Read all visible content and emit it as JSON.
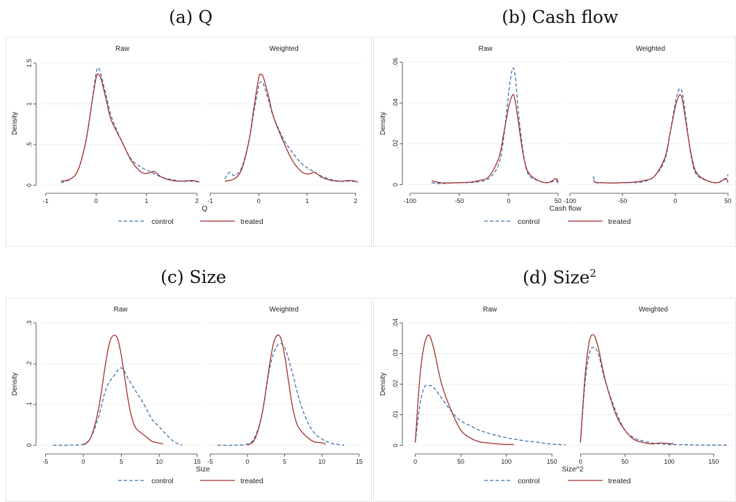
{
  "panels": [
    {
      "key": "a",
      "title": "(a) Q",
      "subplots": [
        "Raw",
        "Weighted"
      ],
      "xlabel": "Q",
      "ylabel": "Density",
      "yticks": [
        {
          "v": 0,
          "label": "0"
        },
        {
          "v": 0.5,
          "label": ".5"
        },
        {
          "v": 1,
          "label": "1"
        },
        {
          "v": 1.5,
          "label": "1.5"
        }
      ],
      "ylim": [
        -0.03,
        1.55
      ],
      "xticks_left": [
        -1,
        0,
        1,
        2
      ],
      "xticks_right": [
        -1,
        0,
        1,
        2
      ],
      "xlim": [
        -1.08,
        2.12
      ],
      "show_left_label_for_first_right_tick": false
    },
    {
      "key": "b",
      "title": "(b) Cash flow",
      "subplots": [
        "Raw",
        "Weighted"
      ],
      "xlabel": "Cash flow",
      "ylabel": "Density",
      "yticks": [
        {
          "v": 0,
          "label": "0"
        },
        {
          "v": 0.02,
          "label": ".02"
        },
        {
          "v": 0.04,
          "label": ".04"
        },
        {
          "v": 0.06,
          "label": ".06"
        }
      ],
      "ylim": [
        -0.0015,
        0.0615
      ],
      "xticks_left": [
        -100,
        -50,
        0,
        50
      ],
      "xticks_right": [
        -100,
        -50,
        0,
        50
      ],
      "xlim": [
        -102,
        55
      ]
    },
    {
      "key": "c",
      "title": "(c) Size",
      "subplots": [
        "Raw",
        "Weighted"
      ],
      "xlabel": "Size",
      "ylabel": "Density",
      "yticks": [
        {
          "v": 0,
          "label": "0"
        },
        {
          "v": 0.1,
          "label": ".1"
        },
        {
          "v": 0.2,
          "label": ".2"
        },
        {
          "v": 0.3,
          "label": ".3"
        }
      ],
      "ylim": [
        -0.008,
        0.308
      ],
      "xticks_left": [
        -5,
        0,
        5,
        10,
        15
      ],
      "xticks_right": [
        -5,
        0,
        5,
        10,
        15
      ],
      "xlim": [
        -5.5,
        15.3
      ]
    },
    {
      "key": "d",
      "title": "(d) Size",
      "title_sup": "2",
      "subplots": [
        "Raw",
        "Weighted"
      ],
      "xlabel": "Size^2",
      "ylabel": "Density",
      "yticks": [
        {
          "v": 0,
          "label": "0"
        },
        {
          "v": 0.01,
          "label": ".01"
        },
        {
          "v": 0.02,
          "label": ".02"
        },
        {
          "v": 0.03,
          "label": ".03"
        },
        {
          "v": 0.04,
          "label": ".04"
        }
      ],
      "ylim": [
        -0.001,
        0.041
      ],
      "xticks_left": [
        0,
        50,
        100,
        150
      ],
      "xticks_right": [
        0,
        50,
        100,
        150
      ],
      "xlim": [
        -8,
        172
      ]
    }
  ],
  "legend": {
    "control": "control",
    "treated": "treated"
  },
  "colors": {
    "control": "#3a6fa8",
    "treated": "#a52a2a",
    "grid": "#e9e9e9",
    "axis": "#333333"
  },
  "chart_data": [
    {
      "type": "line",
      "title": "(a) Q",
      "xlabel": "Q",
      "ylabel": "Density",
      "subplots": [
        {
          "name": "Raw",
          "series": [
            {
              "name": "control",
              "x": [
                -0.7,
                -0.5,
                -0.35,
                -0.2,
                -0.1,
                0,
                0.05,
                0.1,
                0.2,
                0.3,
                0.5,
                0.7,
                0.9,
                1.1,
                1.3,
                1.5,
                1.7,
                1.9,
                2.05
              ],
              "y": [
                0.03,
                0.08,
                0.2,
                0.55,
                0.95,
                1.38,
                1.44,
                1.35,
                1.1,
                0.85,
                0.55,
                0.32,
                0.22,
                0.16,
                0.1,
                0.07,
                0.05,
                0.05,
                0.04
              ]
            },
            {
              "name": "treated",
              "x": [
                -0.7,
                -0.5,
                -0.35,
                -0.2,
                -0.1,
                0,
                0.05,
                0.1,
                0.2,
                0.3,
                0.5,
                0.7,
                0.9,
                1.05,
                1.15,
                1.3,
                1.5,
                1.7,
                1.9,
                2.05
              ],
              "y": [
                0.05,
                0.08,
                0.2,
                0.55,
                0.95,
                1.32,
                1.36,
                1.3,
                1.05,
                0.8,
                0.55,
                0.3,
                0.16,
                0.15,
                0.17,
                0.1,
                0.06,
                0.05,
                0.06,
                0.04
              ]
            }
          ]
        },
        {
          "name": "Weighted",
          "series": [
            {
              "name": "control",
              "x": [
                -0.7,
                -0.6,
                -0.5,
                -0.35,
                -0.2,
                -0.1,
                0,
                0.05,
                0.1,
                0.2,
                0.3,
                0.5,
                0.7,
                0.9,
                1.1,
                1.3,
                1.5,
                1.7,
                1.9,
                2.05
              ],
              "y": [
                0.08,
                0.16,
                0.12,
                0.22,
                0.55,
                0.9,
                1.22,
                1.27,
                1.24,
                1.05,
                0.85,
                0.58,
                0.4,
                0.26,
                0.18,
                0.11,
                0.07,
                0.05,
                0.05,
                0.04
              ]
            },
            {
              "name": "treated",
              "x": [
                -0.7,
                -0.5,
                -0.35,
                -0.2,
                -0.1,
                0,
                0.05,
                0.1,
                0.2,
                0.3,
                0.5,
                0.7,
                0.9,
                1.05,
                1.15,
                1.3,
                1.5,
                1.7,
                1.9,
                2.05
              ],
              "y": [
                0.05,
                0.08,
                0.2,
                0.55,
                0.95,
                1.32,
                1.36,
                1.32,
                1.1,
                0.85,
                0.55,
                0.3,
                0.16,
                0.14,
                0.16,
                0.1,
                0.06,
                0.05,
                0.06,
                0.04
              ]
            }
          ]
        }
      ]
    },
    {
      "type": "line",
      "title": "(b) Cash flow",
      "xlabel": "Cash flow",
      "ylabel": "Density",
      "subplots": [
        {
          "name": "Raw",
          "series": [
            {
              "name": "control",
              "x": [
                -78,
                -70,
                -60,
                -50,
                -40,
                -30,
                -20,
                -10,
                -5,
                0,
                3,
                5,
                7,
                10,
                15,
                20,
                30,
                40,
                48,
                50
              ],
              "y": [
                0.001,
                0.0005,
                0.0008,
                0.001,
                0.001,
                0.0015,
                0.003,
                0.01,
                0.023,
                0.045,
                0.055,
                0.057,
                0.052,
                0.035,
                0.015,
                0.005,
                0.002,
                0.001,
                0.002,
                0.0005
              ]
            },
            {
              "name": "treated",
              "x": [
                -78,
                -70,
                -60,
                -50,
                -40,
                -30,
                -20,
                -10,
                -5,
                0,
                3,
                5,
                7,
                10,
                15,
                20,
                30,
                40,
                48,
                50
              ],
              "y": [
                0.002,
                0.001,
                0.0008,
                0.001,
                0.0012,
                0.002,
                0.004,
                0.013,
                0.025,
                0.038,
                0.043,
                0.044,
                0.04,
                0.03,
                0.014,
                0.006,
                0.002,
                0.001,
                0.003,
                0.001
              ]
            }
          ]
        },
        {
          "name": "Weighted",
          "series": [
            {
              "name": "control",
              "x": [
                -78,
                -75,
                -70,
                -60,
                -50,
                -40,
                -30,
                -20,
                -10,
                -5,
                0,
                3,
                5,
                7,
                10,
                15,
                20,
                30,
                40,
                48,
                50
              ],
              "y": [
                0.004,
                0.001,
                0.001,
                0.0008,
                0.001,
                0.001,
                0.0015,
                0.004,
                0.012,
                0.025,
                0.04,
                0.046,
                0.047,
                0.044,
                0.033,
                0.014,
                0.005,
                0.002,
                0.001,
                0.003,
                0.005
              ]
            },
            {
              "name": "treated",
              "x": [
                -78,
                -75,
                -70,
                -60,
                -50,
                -40,
                -30,
                -20,
                -10,
                -5,
                0,
                3,
                5,
                7,
                10,
                15,
                20,
                30,
                40,
                48,
                50
              ],
              "y": [
                0.002,
                0.001,
                0.001,
                0.0008,
                0.001,
                0.0012,
                0.002,
                0.004,
                0.013,
                0.025,
                0.038,
                0.043,
                0.044,
                0.041,
                0.031,
                0.015,
                0.006,
                0.002,
                0.001,
                0.003,
                0.001
              ]
            }
          ]
        }
      ]
    },
    {
      "type": "line",
      "title": "(c) Size",
      "xlabel": "Size",
      "ylabel": "Density",
      "subplots": [
        {
          "name": "Raw",
          "series": [
            {
              "name": "control",
              "x": [
                -4,
                -2,
                0,
                1,
                2,
                3,
                4,
                5,
                6,
                7,
                8,
                9,
                10,
                11,
                12,
                13
              ],
              "y": [
                0,
                0,
                0.003,
                0.02,
                0.07,
                0.14,
                0.17,
                0.19,
                0.16,
                0.13,
                0.1,
                0.065,
                0.045,
                0.025,
                0.008,
                0
              ]
            },
            {
              "name": "treated",
              "x": [
                0,
                1,
                2,
                3,
                3.5,
                4,
                4.5,
                5,
                5.5,
                6,
                6.5,
                7,
                8,
                9,
                10,
                10.5
              ],
              "y": [
                0,
                0.02,
                0.09,
                0.21,
                0.255,
                0.27,
                0.262,
                0.22,
                0.16,
                0.1,
                0.06,
                0.04,
                0.025,
                0.01,
                0.005,
                0.003
              ]
            }
          ]
        },
        {
          "name": "Weighted",
          "series": [
            {
              "name": "control",
              "x": [
                -4,
                -2,
                0,
                1,
                2,
                3,
                4,
                5,
                6,
                7,
                8,
                9,
                10,
                11,
                12,
                13
              ],
              "y": [
                0,
                0,
                0.003,
                0.02,
                0.08,
                0.19,
                0.245,
                0.24,
                0.18,
                0.11,
                0.06,
                0.03,
                0.015,
                0.006,
                0.002,
                0
              ]
            },
            {
              "name": "treated",
              "x": [
                0,
                1,
                2,
                3,
                3.5,
                4,
                4.5,
                5,
                5.5,
                6,
                6.5,
                7,
                8,
                9,
                10,
                10.5
              ],
              "y": [
                0,
                0.015,
                0.08,
                0.2,
                0.25,
                0.27,
                0.262,
                0.22,
                0.16,
                0.1,
                0.06,
                0.04,
                0.02,
                0.008,
                0.006,
                0.002
              ]
            }
          ]
        }
      ]
    },
    {
      "type": "line",
      "title": "(d) Size^2",
      "xlabel": "Size^2",
      "ylabel": "Density",
      "subplots": [
        {
          "name": "Raw",
          "series": [
            {
              "name": "control",
              "x": [
                0,
                5,
                10,
                15,
                20,
                30,
                40,
                50,
                60,
                70,
                80,
                90,
                100,
                110,
                120,
                130,
                140,
                150,
                165
              ],
              "y": [
                0.001,
                0.013,
                0.019,
                0.0195,
                0.019,
                0.015,
                0.011,
                0.008,
                0.0065,
                0.005,
                0.004,
                0.0032,
                0.0025,
                0.002,
                0.0015,
                0.0012,
                0.0008,
                0.0004,
                0.0002
              ]
            },
            {
              "name": "treated",
              "x": [
                0,
                5,
                10,
                15,
                20,
                25,
                30,
                40,
                50,
                60,
                70,
                80,
                90,
                100,
                108
              ],
              "y": [
                0.001,
                0.022,
                0.033,
                0.036,
                0.032,
                0.025,
                0.019,
                0.011,
                0.005,
                0.0025,
                0.0012,
                0.0008,
                0.0005,
                0.0003,
                0.0003
              ]
            }
          ]
        },
        {
          "name": "Weighted",
          "series": [
            {
              "name": "control",
              "x": [
                0,
                5,
                10,
                15,
                20,
                25,
                30,
                40,
                50,
                60,
                70,
                80,
                90,
                100,
                120,
                140,
                165
              ],
              "y": [
                0.001,
                0.02,
                0.03,
                0.032,
                0.03,
                0.024,
                0.019,
                0.011,
                0.005,
                0.0025,
                0.0015,
                0.0008,
                0.0005,
                0.0003,
                0.0002,
                0.0001,
                0.0001
              ]
            },
            {
              "name": "treated",
              "x": [
                0,
                5,
                10,
                15,
                20,
                25,
                30,
                40,
                50,
                60,
                70,
                80,
                90,
                100,
                105
              ],
              "y": [
                0.001,
                0.022,
                0.034,
                0.036,
                0.032,
                0.025,
                0.019,
                0.01,
                0.005,
                0.002,
                0.001,
                0.0005,
                0.0008,
                0.0006,
                0.0005
              ]
            }
          ]
        }
      ]
    }
  ]
}
